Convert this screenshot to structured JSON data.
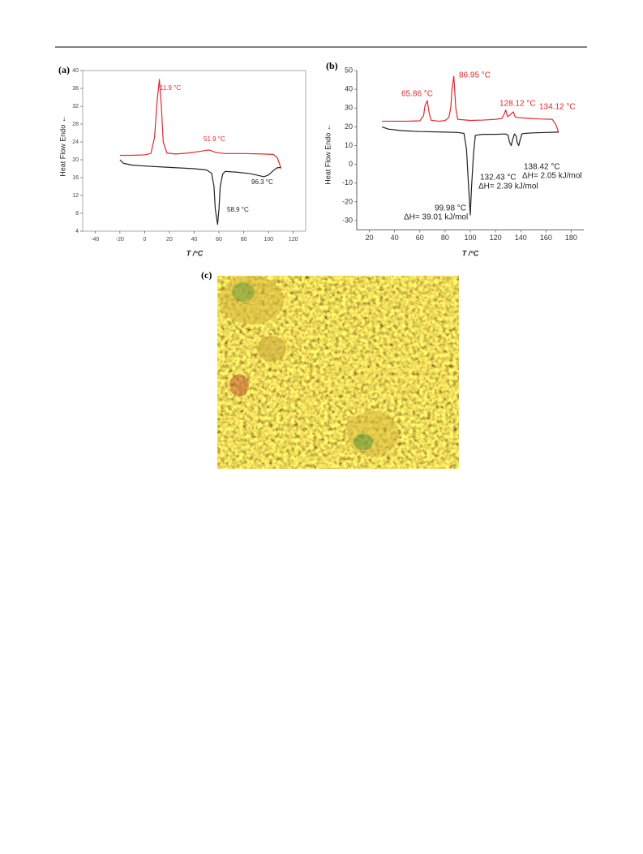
{
  "chart_data": [
    {
      "type": "line",
      "label": "(a)",
      "xlabel": "T /°C",
      "ylabel": "Heat Flow Endo ←",
      "xlim": [
        -50,
        130
      ],
      "xticks": [
        -40,
        -20,
        0,
        20,
        40,
        60,
        80,
        100,
        120
      ],
      "ylim": [
        4,
        40
      ],
      "yticks": [
        4,
        8,
        12,
        16,
        20,
        24,
        28,
        32,
        36,
        40
      ],
      "series": [
        {
          "color": "#e8262b",
          "x": [
            -20,
            -10,
            0,
            5,
            8,
            10,
            11.9,
            13.5,
            15,
            18,
            25,
            35,
            45,
            51.9,
            58,
            65,
            80,
            95,
            104,
            107,
            109,
            110
          ],
          "values": [
            21,
            21,
            21.1,
            21.4,
            25,
            33,
            38,
            32,
            24,
            21.5,
            21.3,
            21.5,
            21.9,
            22.2,
            21.6,
            21.4,
            21.4,
            21.3,
            21.2,
            20.5,
            19,
            18
          ]
        },
        {
          "color": "#222222",
          "x": [
            -20,
            -17,
            -10,
            0,
            20,
            40,
            50,
            54,
            56,
            57,
            58.9,
            60,
            61,
            63,
            65,
            75,
            85,
            90,
            96.3,
            100,
            104,
            107,
            110
          ],
          "values": [
            20,
            19.2,
            18.8,
            18.6,
            18.3,
            18,
            17.7,
            17,
            14,
            9,
            5.5,
            9,
            14,
            16.8,
            17.4,
            17.2,
            16.9,
            16.6,
            16.2,
            16.6,
            17.6,
            18.2,
            18.3
          ]
        }
      ],
      "annotations": [
        {
          "text": "11.9 °C",
          "color": "#e8262b"
        },
        {
          "text": "51.9 °C",
          "color": "#e8262b"
        },
        {
          "text": "96.3 °C",
          "color": "#222222"
        },
        {
          "text": "58.9 °C",
          "color": "#222222"
        }
      ]
    },
    {
      "type": "line",
      "label": "(b)",
      "xlabel": "T /°C",
      "ylabel": "Heat Flow Endo ←",
      "xlim": [
        10,
        190
      ],
      "xticks": [
        20,
        40,
        60,
        80,
        100,
        120,
        140,
        160,
        180
      ],
      "ylim": [
        -35,
        50
      ],
      "yticks": [
        -30,
        -20,
        -10,
        0,
        10,
        20,
        30,
        40,
        50
      ],
      "series": [
        {
          "color": "#e8262b",
          "x": [
            30,
            40,
            50,
            60,
            63,
            64,
            65.86,
            67.5,
            69,
            75,
            80,
            83,
            84.5,
            85.5,
            86.95,
            88.5,
            90,
            100,
            110,
            120,
            125,
            127,
            128.12,
            129.5,
            131,
            132.5,
            134.12,
            135.5,
            137,
            145,
            155,
            165,
            168,
            170
          ],
          "values": [
            23,
            23,
            23,
            23.2,
            26,
            31,
            34,
            27,
            23.5,
            23,
            23.3,
            25,
            30,
            40,
            47,
            30,
            24,
            23.4,
            23.6,
            24,
            24.5,
            27,
            29,
            25.5,
            26,
            27,
            28,
            25.5,
            25,
            24.6,
            24.2,
            24,
            21,
            17
          ]
        },
        {
          "color": "#222222",
          "x": [
            30,
            35,
            45,
            60,
            80,
            90,
            95,
            97,
            98.5,
            99.98,
            101,
            102.5,
            104,
            110,
            120,
            128,
            130,
            131,
            132.43,
            133.5,
            135,
            136.5,
            137,
            138.42,
            139.5,
            141,
            143,
            150,
            160,
            170
          ],
          "values": [
            20,
            18.8,
            18,
            17.5,
            17.2,
            17,
            16.5,
            8,
            -10,
            -27,
            -12,
            5,
            15.5,
            16,
            16,
            16.2,
            15.5,
            12,
            10,
            13,
            16.2,
            15,
            12,
            10,
            13,
            16.3,
            16.5,
            16.8,
            17,
            17.2
          ]
        }
      ],
      "annotations": [
        {
          "text": "65.86 °C",
          "color": "#e8262b"
        },
        {
          "text": "86.95 °C",
          "color": "#e8262b"
        },
        {
          "text": "128.12 °C",
          "color": "#e8262b"
        },
        {
          "text": "134.12 °C",
          "color": "#e8262b"
        },
        {
          "text": "132.43 °C",
          "color": "#222222"
        },
        {
          "text": "ΔH= 2.39 kJ/mol",
          "color": "#222222"
        },
        {
          "text": "138.42 °C",
          "color": "#222222"
        },
        {
          "text": "ΔH= 2.05 kJ/mol",
          "color": "#222222"
        },
        {
          "text": "99.98 °C",
          "color": "#222222"
        },
        {
          "text": "ΔH= 39.01 kJ/mol",
          "color": "#222222"
        }
      ]
    }
  ],
  "micrograph": {
    "label": "(c)"
  }
}
